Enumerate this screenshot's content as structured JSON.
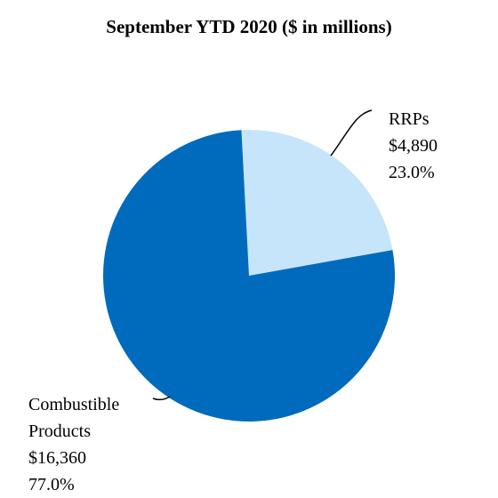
{
  "colors": {
    "combustible": "#006bbd",
    "rrps": "#c6e5fa",
    "leader": "#000000"
  },
  "chart_data": {
    "type": "pie",
    "title": "September YTD 2020 ($ in millions)",
    "slices": [
      {
        "name_lines": [
          "RRPs"
        ],
        "value": 4890,
        "value_label": "$4,890",
        "percent_label": "23.0%"
      },
      {
        "name_lines": [
          "Combustible",
          "Products"
        ],
        "value": 16360,
        "value_label": "$16,360",
        "percent_label": "77.0%"
      }
    ]
  }
}
